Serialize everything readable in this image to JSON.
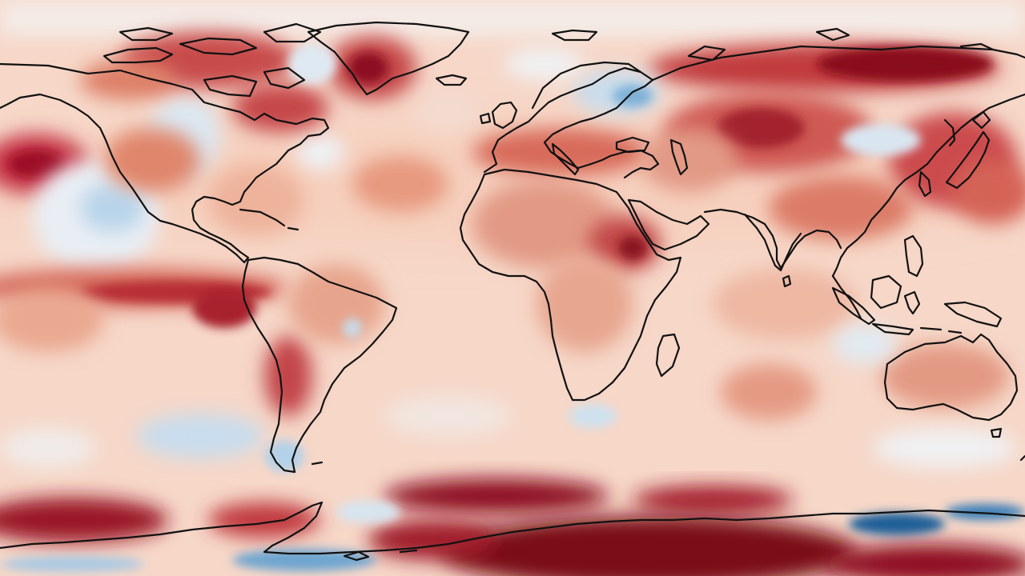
{
  "map": {
    "projection": "equirectangular",
    "variable": "anomaly",
    "colormap": {
      "type": "diverging",
      "strong_warm": "#67000d",
      "warm": "#b2182b",
      "mild_warm": "#e58368",
      "light_warm": "#f7c4ad",
      "neutral": "#f7f4f2",
      "light_cool": "#cfe3f0",
      "cool": "#6aa6d1",
      "strong_cool": "#0b4f8a"
    },
    "background_color": "#f7dcd0",
    "coastline_color": "#111111",
    "visible_text": []
  }
}
